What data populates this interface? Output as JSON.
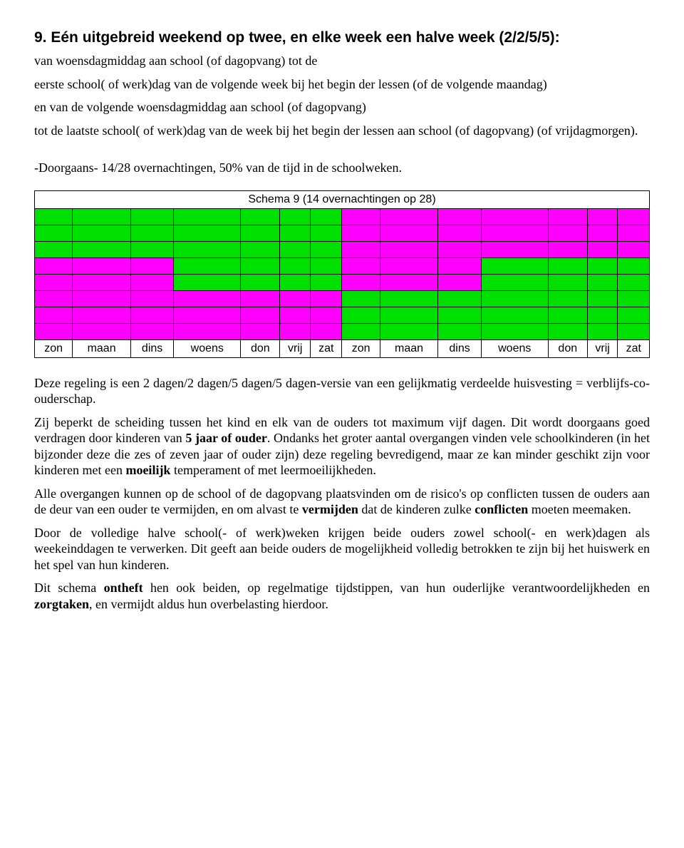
{
  "heading": "9. Eén uitgebreid weekend op twee, en elke week een halve week (2/2/5/5):",
  "intro_p1": "van woensdagmiddag aan school (of dagopvang) tot de",
  "intro_p2": "eerste school( of werk)dag van de volgende week bij het begin der lessen (of de volgende maandag)",
  "intro_p3": "en van de volgende woensdagmiddag aan school (of dagopvang)",
  "intro_p4": "tot de laatste school( of werk)dag van de week bij het begin der lessen aan school (of dagopvang) (of vrijdagmorgen).",
  "summary_line": "-Doorgaans- 14/28 overnachtingen, 50% van de tijd in de schoolweken.",
  "schedule": {
    "title": "Schema 9 (14 overnachtingen op 28)",
    "columns": 14,
    "color_a": "#00e000",
    "color_b": "#ff00ff",
    "rows": [
      [
        "a",
        "a",
        "a",
        "a",
        "a",
        "a",
        "a",
        "b",
        "b",
        "b",
        "b",
        "b",
        "b",
        "b"
      ],
      [
        "a",
        "a",
        "a",
        "a",
        "a",
        "a",
        "a",
        "b",
        "b",
        "b",
        "b",
        "b",
        "b",
        "b"
      ],
      [
        "a",
        "a",
        "a",
        "a",
        "a",
        "a",
        "a",
        "b",
        "b",
        "b",
        "b",
        "b",
        "b",
        "b"
      ],
      [
        "b",
        "b",
        "b",
        "a",
        "a",
        "a",
        "a",
        "b",
        "b",
        "b",
        "a",
        "a",
        "a",
        "a"
      ],
      [
        "b",
        "b",
        "b",
        "a",
        "a",
        "a",
        "a",
        "b",
        "b",
        "b",
        "a",
        "a",
        "a",
        "a"
      ],
      [
        "b",
        "b",
        "b",
        "b",
        "b",
        "b",
        "b",
        "a",
        "a",
        "a",
        "a",
        "a",
        "a",
        "a"
      ],
      [
        "b",
        "b",
        "b",
        "b",
        "b",
        "b",
        "b",
        "a",
        "a",
        "a",
        "a",
        "a",
        "a",
        "a"
      ],
      [
        "b",
        "b",
        "b",
        "b",
        "b",
        "b",
        "b",
        "a",
        "a",
        "a",
        "a",
        "a",
        "a",
        "a"
      ]
    ],
    "day_labels": [
      "zon",
      "maan",
      "dins",
      "woens",
      "don",
      "vrij",
      "zat",
      "zon",
      "maan",
      "dins",
      "woens",
      "don",
      "vrij",
      "zat"
    ]
  },
  "para1": "Deze regeling is een 2 dagen/2 dagen/5 dagen/5 dagen-versie van een gelijkmatig verdeelde huisvesting = verblijfs-co-ouderschap.",
  "para2_a": "Zij beperkt de scheiding tussen het kind en elk van de ouders tot maximum vijf dagen. Dit wordt doorgaans goed verdragen door kinderen van ",
  "para2_bold": "5 jaar of ouder",
  "para2_b": ". Ondanks het groter aantal overgangen vinden vele schoolkinderen (in het bijzonder deze die zes of zeven jaar of ouder zijn) deze regeling bevredigend, maar ze kan minder geschikt zijn voor kinderen met een ",
  "para2_bold2": "moeilijk",
  "para2_c": " temperament of met leermoeilijkheden.",
  "para3_a": "Alle overgangen kunnen op de school of de dagopvang plaatsvinden om de risico's op conflicten tussen de ouders aan de deur van een ouder te vermijden, en om alvast te ",
  "para3_bold1": "vermijden",
  "para3_b": " dat de kinderen zulke ",
  "para3_bold2": "conflicten",
  "para3_c": " moeten meemaken.",
  "para4": "Door de volledige halve school(- of werk)weken krijgen beide ouders zowel school(- en werk)dagen als weekeinddagen te verwerken. Dit geeft aan beide ouders de mogelijkheid volledig betrokken te zijn bij het huiswerk en het spel van hun kinderen.",
  "para5_a": "Dit schema ",
  "para5_bold1": "ontheft",
  "para5_b": " hen ook beiden, op regelmatige tijdstippen, van hun ouderlijke verantwoordelijkheden en ",
  "para5_bold2": "zorgtaken",
  "para5_c": ", en vermijdt aldus hun overbelasting hierdoor."
}
